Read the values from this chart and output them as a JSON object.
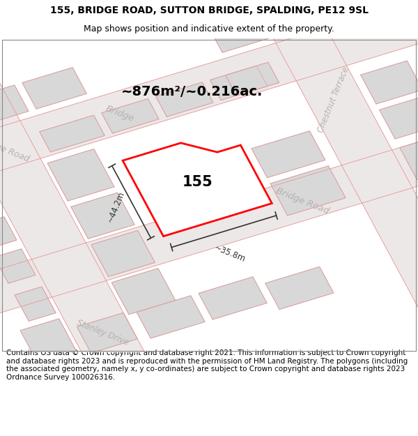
{
  "title_line1": "155, BRIDGE ROAD, SUTTON BRIDGE, SPALDING, PE12 9SL",
  "title_line2": "Map shows position and indicative extent of the property.",
  "footer_text": "Contains OS data © Crown copyright and database right 2021. This information is subject to Crown copyright and database rights 2023 and is reproduced with the permission of HM Land Registry. The polygons (including the associated geometry, namely x, y co-ordinates) are subject to Crown copyright and database rights 2023 Ordnance Survey 100026316.",
  "area_label": "~876m²/~0.216ac.",
  "property_number": "155",
  "width_label": "~35.8m",
  "height_label": "~44.2m",
  "map_bg": "#f8f4f4",
  "bld_fill": "#d8d8d8",
  "bld_edge": "#c0b0b0",
  "road_color": "#e8a0a0",
  "road_band_color": "#ede8e8",
  "property_color": "#ff0000",
  "label_color": "#b8b0b0",
  "measure_color": "#333333",
  "title_fontsize": 10,
  "subtitle_fontsize": 9,
  "footer_fontsize": 7.5,
  "area_fontsize": 14,
  "prop_num_fontsize": 15,
  "road_label_fontsize": 9
}
